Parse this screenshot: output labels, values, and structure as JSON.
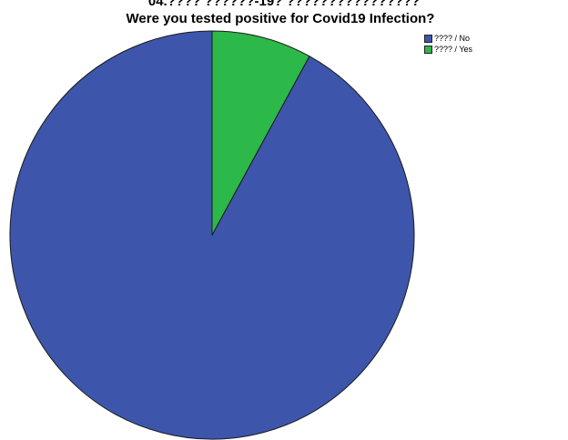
{
  "chart_data": {
    "type": "pie",
    "supertitle": "04.???? ??????-19? ????????????????",
    "title": "Were you tested positive for Covid19 Infection?",
    "series": [
      {
        "name": "???? / No",
        "value": 92.0,
        "color": "#3d56ab"
      },
      {
        "name": "???? / Yes",
        "value": 8.0,
        "color": "#2db84a"
      }
    ],
    "legend_position": "top-right",
    "start_angle": "12-o'clock",
    "direction": "counterclockwise"
  }
}
